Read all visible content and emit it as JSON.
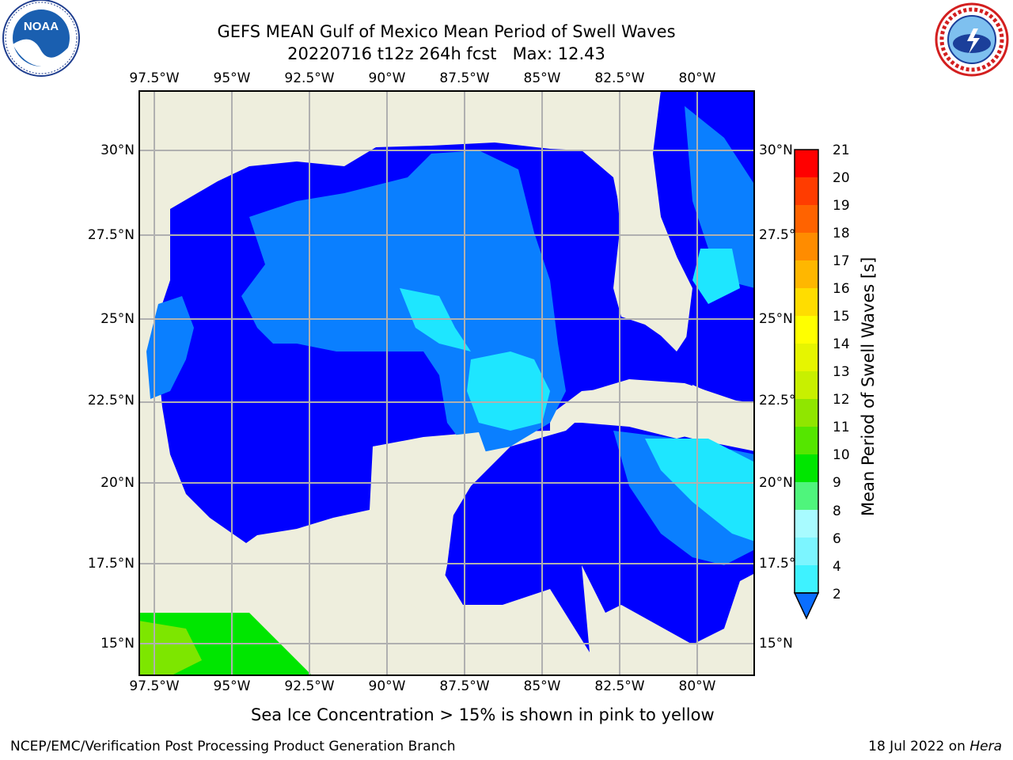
{
  "header": {
    "title_line1": "GEFS MEAN Gulf of Mexico Mean Period of Swell Waves",
    "title_line2": "20220716 t12z 264h fcst   Max: 12.43"
  },
  "logos": {
    "noaa_text": "NOAA",
    "noaa_ring_text": "NATIONAL OCEANIC AND ATMOSPHERIC ADMINISTRATION · U.S. DEPARTMENT OF COMMERCE",
    "nws_ring_text": "NATIONAL WEATHER SERVICE"
  },
  "map": {
    "lon_labels": [
      "97.5°W",
      "95°W",
      "92.5°W",
      "90°W",
      "87.5°W",
      "85°W",
      "82.5°W",
      "80°W"
    ],
    "lat_labels_left": [
      "30°N",
      "27.5°N",
      "25°N",
      "22.5°N",
      "20°N",
      "17.5°N",
      "15°N"
    ],
    "lat_labels_right": [
      "30°N",
      "27.5°N",
      "25°N",
      "22.5°N",
      "20°N",
      "17.5°N",
      "15°N"
    ],
    "colors": {
      "land": "#eeeedd",
      "level_2_4": "#0000ff",
      "level_4_6": "#0a7fff",
      "level_6_8": "#1ee6ff",
      "level_10_12": "#00e600",
      "level_12_13": "#7de600",
      "grid": "#b0b0b0"
    }
  },
  "colorbar": {
    "label": "Mean Period of Swell Waves [s]",
    "ticks": [
      "21",
      "20",
      "19",
      "18",
      "17",
      "16",
      "15",
      "14",
      "13",
      "12",
      "11",
      "10",
      "9",
      "8",
      "6",
      "4",
      "2"
    ],
    "colors": [
      "#0a6eff",
      "#00ffff",
      "#3ef2ff",
      "#7cf5ff",
      "#a8fbff",
      "#4ff57c",
      "#00e600",
      "#55e600",
      "#90e600",
      "#c8f000",
      "#e6f500",
      "#ffff00",
      "#ffdd00",
      "#ffb700",
      "#ff8c00",
      "#ff6300",
      "#ff3c00",
      "#ff0000"
    ]
  },
  "note": "Sea Ice Concentration > 15% is shown in pink to yellow",
  "footer": {
    "left": "NCEP/EMC/Verification Post Processing Product Generation Branch",
    "right_date": "18 Jul 2022 on ",
    "right_host": "Hera"
  }
}
